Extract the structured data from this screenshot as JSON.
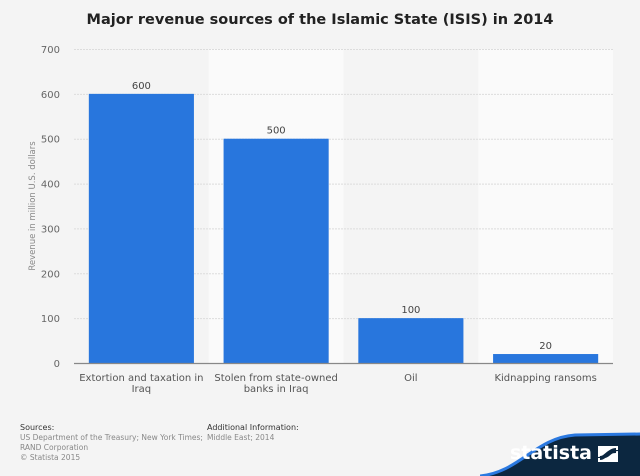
{
  "chart_data": {
    "type": "bar",
    "title": "Major revenue sources of the Islamic State (ISIS) in 2014",
    "xlabel": "",
    "ylabel": "Revenue in million U.S. dollars",
    "ylim": [
      0,
      700
    ],
    "yticks": [
      0,
      100,
      200,
      300,
      400,
      500,
      600,
      700
    ],
    "grid": true,
    "categories": [
      [
        "Extortion and taxation in",
        "Iraq"
      ],
      [
        "Stolen from state-owned",
        "banks in Iraq"
      ],
      [
        "Oil"
      ],
      [
        "Kidnapping ransoms"
      ]
    ],
    "values": [
      600,
      500,
      100,
      20
    ],
    "data_labels": [
      "600",
      "500",
      "100",
      "20"
    ],
    "bar_color": "#2876dd"
  },
  "footer": {
    "sources_label": "Sources:",
    "sources_lines": [
      "US Department of the Treasury; New York Times;",
      "RAND Corporation",
      "© Statista 2015"
    ],
    "additional_label": "Additional Information:",
    "additional_text": "Middle East; 2014"
  },
  "brand": {
    "name": "statista",
    "logo_icon": "statista-logo-icon"
  }
}
